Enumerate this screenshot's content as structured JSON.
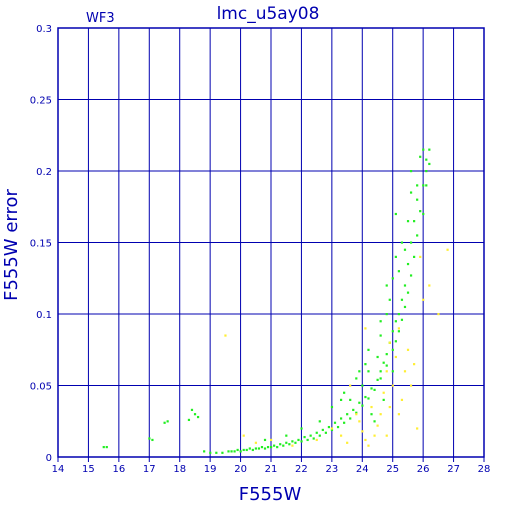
{
  "chart_data": {
    "type": "scatter",
    "title": "lmc_u5ay08",
    "subtitle": "WF3",
    "xlabel": "F555W",
    "ylabel": "F555W error",
    "xlim": [
      14,
      28
    ],
    "ylim": [
      0,
      0.3
    ],
    "x_ticks": [
      14,
      15,
      16,
      17,
      18,
      19,
      20,
      21,
      22,
      23,
      24,
      25,
      26,
      27,
      28
    ],
    "y_ticks": [
      0,
      0.05,
      0.1,
      0.15,
      0.2,
      0.25,
      0.3
    ],
    "x_tick_labels": [
      "14",
      "15",
      "16",
      "17",
      "18",
      "19",
      "20",
      "21",
      "22",
      "23",
      "24",
      "25",
      "26",
      "27",
      "28"
    ],
    "y_tick_labels": [
      "0",
      "0.05",
      "0.1",
      "0.15",
      "0.2",
      "0.25",
      "0.3"
    ],
    "grid": true,
    "colors": {
      "axis": "#0000b0",
      "grid": "#0000b0",
      "green": "#22ee22",
      "yellow": "#ffee33"
    },
    "series": [
      {
        "color": "green",
        "points": [
          [
            15.5,
            0.007
          ],
          [
            15.6,
            0.007
          ],
          [
            17.0,
            0.013
          ],
          [
            17.1,
            0.012
          ],
          [
            17.5,
            0.024
          ],
          [
            17.6,
            0.025
          ],
          [
            18.3,
            0.026
          ],
          [
            18.4,
            0.033
          ],
          [
            18.5,
            0.03
          ],
          [
            18.6,
            0.028
          ],
          [
            18.8,
            0.004
          ],
          [
            19.0,
            0.003
          ],
          [
            19.2,
            0.003
          ],
          [
            19.4,
            0.003
          ],
          [
            19.6,
            0.004
          ],
          [
            19.8,
            0.004
          ],
          [
            20.0,
            0.004
          ],
          [
            20.2,
            0.005
          ],
          [
            20.4,
            0.005
          ],
          [
            20.6,
            0.006
          ],
          [
            20.8,
            0.006
          ],
          [
            21.0,
            0.007
          ],
          [
            21.2,
            0.007
          ],
          [
            21.4,
            0.008
          ],
          [
            21.6,
            0.009
          ],
          [
            21.8,
            0.01
          ],
          [
            22.0,
            0.011
          ],
          [
            22.2,
            0.012
          ],
          [
            22.4,
            0.013
          ],
          [
            22.6,
            0.015
          ],
          [
            22.8,
            0.017
          ],
          [
            23.0,
            0.019
          ],
          [
            23.2,
            0.021
          ],
          [
            23.4,
            0.024
          ],
          [
            23.6,
            0.027
          ],
          [
            23.8,
            0.031
          ],
          [
            24.0,
            0.036
          ],
          [
            24.2,
            0.041
          ],
          [
            24.4,
            0.047
          ],
          [
            24.6,
            0.055
          ],
          [
            24.8,
            0.064
          ],
          [
            25.0,
            0.075
          ],
          [
            25.1,
            0.081
          ],
          [
            25.2,
            0.088
          ],
          [
            25.3,
            0.096
          ],
          [
            25.4,
            0.105
          ],
          [
            25.5,
            0.115
          ],
          [
            25.6,
            0.127
          ],
          [
            25.7,
            0.14
          ],
          [
            25.8,
            0.155
          ],
          [
            25.9,
            0.172
          ],
          [
            26.0,
            0.19
          ],
          [
            26.1,
            0.208
          ],
          [
            26.2,
            0.215
          ],
          [
            25.9,
            0.21
          ],
          [
            26.0,
            0.215
          ],
          [
            26.1,
            0.2
          ],
          [
            26.2,
            0.205
          ],
          [
            25.8,
            0.18
          ],
          [
            25.7,
            0.165
          ],
          [
            25.6,
            0.15
          ],
          [
            25.5,
            0.135
          ],
          [
            25.4,
            0.12
          ],
          [
            25.3,
            0.11
          ],
          [
            25.2,
            0.1
          ],
          [
            25.1,
            0.095
          ],
          [
            25.0,
            0.088
          ],
          [
            24.9,
            0.08
          ],
          [
            24.8,
            0.072
          ],
          [
            24.7,
            0.066
          ],
          [
            24.6,
            0.06
          ],
          [
            24.5,
            0.054
          ],
          [
            24.3,
            0.048
          ],
          [
            24.1,
            0.042
          ],
          [
            23.9,
            0.038
          ],
          [
            23.7,
            0.033
          ],
          [
            23.5,
            0.03
          ],
          [
            23.3,
            0.027
          ],
          [
            23.1,
            0.024
          ],
          [
            22.9,
            0.021
          ],
          [
            22.7,
            0.019
          ],
          [
            22.5,
            0.017
          ],
          [
            22.3,
            0.015
          ],
          [
            22.1,
            0.014
          ],
          [
            21.9,
            0.012
          ],
          [
            21.7,
            0.011
          ],
          [
            21.5,
            0.01
          ],
          [
            21.3,
            0.009
          ],
          [
            21.1,
            0.008
          ],
          [
            20.9,
            0.007
          ],
          [
            20.7,
            0.007
          ],
          [
            20.5,
            0.006
          ],
          [
            20.3,
            0.006
          ],
          [
            20.1,
            0.005
          ],
          [
            19.9,
            0.005
          ],
          [
            19.7,
            0.004
          ],
          [
            24.0,
            0.05
          ],
          [
            24.2,
            0.06
          ],
          [
            24.5,
            0.07
          ],
          [
            24.6,
            0.085
          ],
          [
            24.8,
            0.1
          ],
          [
            24.9,
            0.11
          ],
          [
            25.0,
            0.125
          ],
          [
            25.1,
            0.14
          ],
          [
            25.3,
            0.15
          ],
          [
            25.5,
            0.165
          ],
          [
            25.6,
            0.185
          ],
          [
            25.8,
            0.19
          ],
          [
            26.0,
            0.17
          ],
          [
            23.0,
            0.035
          ],
          [
            23.3,
            0.04
          ],
          [
            23.6,
            0.04
          ],
          [
            23.8,
            0.055
          ],
          [
            24.3,
            0.03
          ],
          [
            24.4,
            0.025
          ],
          [
            24.7,
            0.04
          ],
          [
            25.0,
            0.06
          ],
          [
            24.1,
            0.065
          ],
          [
            23.4,
            0.045
          ],
          [
            22.6,
            0.025
          ],
          [
            22.0,
            0.02
          ],
          [
            21.5,
            0.015
          ],
          [
            20.8,
            0.012
          ],
          [
            24.8,
            0.12
          ],
          [
            25.2,
            0.13
          ],
          [
            25.4,
            0.145
          ],
          [
            25.1,
            0.17
          ],
          [
            25.6,
            0.2
          ],
          [
            24.6,
            0.095
          ],
          [
            24.2,
            0.075
          ],
          [
            23.9,
            0.06
          ],
          [
            26.1,
            0.19
          ]
        ]
      },
      {
        "color": "yellow",
        "points": [
          [
            19.5,
            0.085
          ],
          [
            20.1,
            0.015
          ],
          [
            20.5,
            0.01
          ],
          [
            21.0,
            0.012
          ],
          [
            21.7,
            0.008
          ],
          [
            22.5,
            0.012
          ],
          [
            23.0,
            0.02
          ],
          [
            23.3,
            0.015
          ],
          [
            23.5,
            0.01
          ],
          [
            23.8,
            0.03
          ],
          [
            24.0,
            0.018
          ],
          [
            24.1,
            0.012
          ],
          [
            24.2,
            0.008
          ],
          [
            24.4,
            0.015
          ],
          [
            24.5,
            0.022
          ],
          [
            24.6,
            0.03
          ],
          [
            24.7,
            0.045
          ],
          [
            24.8,
            0.06
          ],
          [
            24.9,
            0.035
          ],
          [
            25.0,
            0.05
          ],
          [
            25.1,
            0.07
          ],
          [
            25.2,
            0.09
          ],
          [
            25.3,
            0.04
          ],
          [
            25.5,
            0.075
          ],
          [
            25.6,
            0.05
          ],
          [
            25.7,
            0.065
          ],
          [
            25.8,
            0.02
          ],
          [
            26.0,
            0.11
          ],
          [
            26.5,
            0.1
          ],
          [
            26.8,
            0.145
          ],
          [
            24.1,
            0.09
          ],
          [
            24.3,
            0.035
          ],
          [
            23.6,
            0.05
          ],
          [
            24.9,
            0.08
          ],
          [
            25.4,
            0.06
          ],
          [
            25.9,
            0.14
          ],
          [
            26.2,
            0.12
          ],
          [
            23.9,
            0.025
          ],
          [
            24.8,
            0.015
          ],
          [
            25.2,
            0.03
          ]
        ]
      }
    ]
  }
}
